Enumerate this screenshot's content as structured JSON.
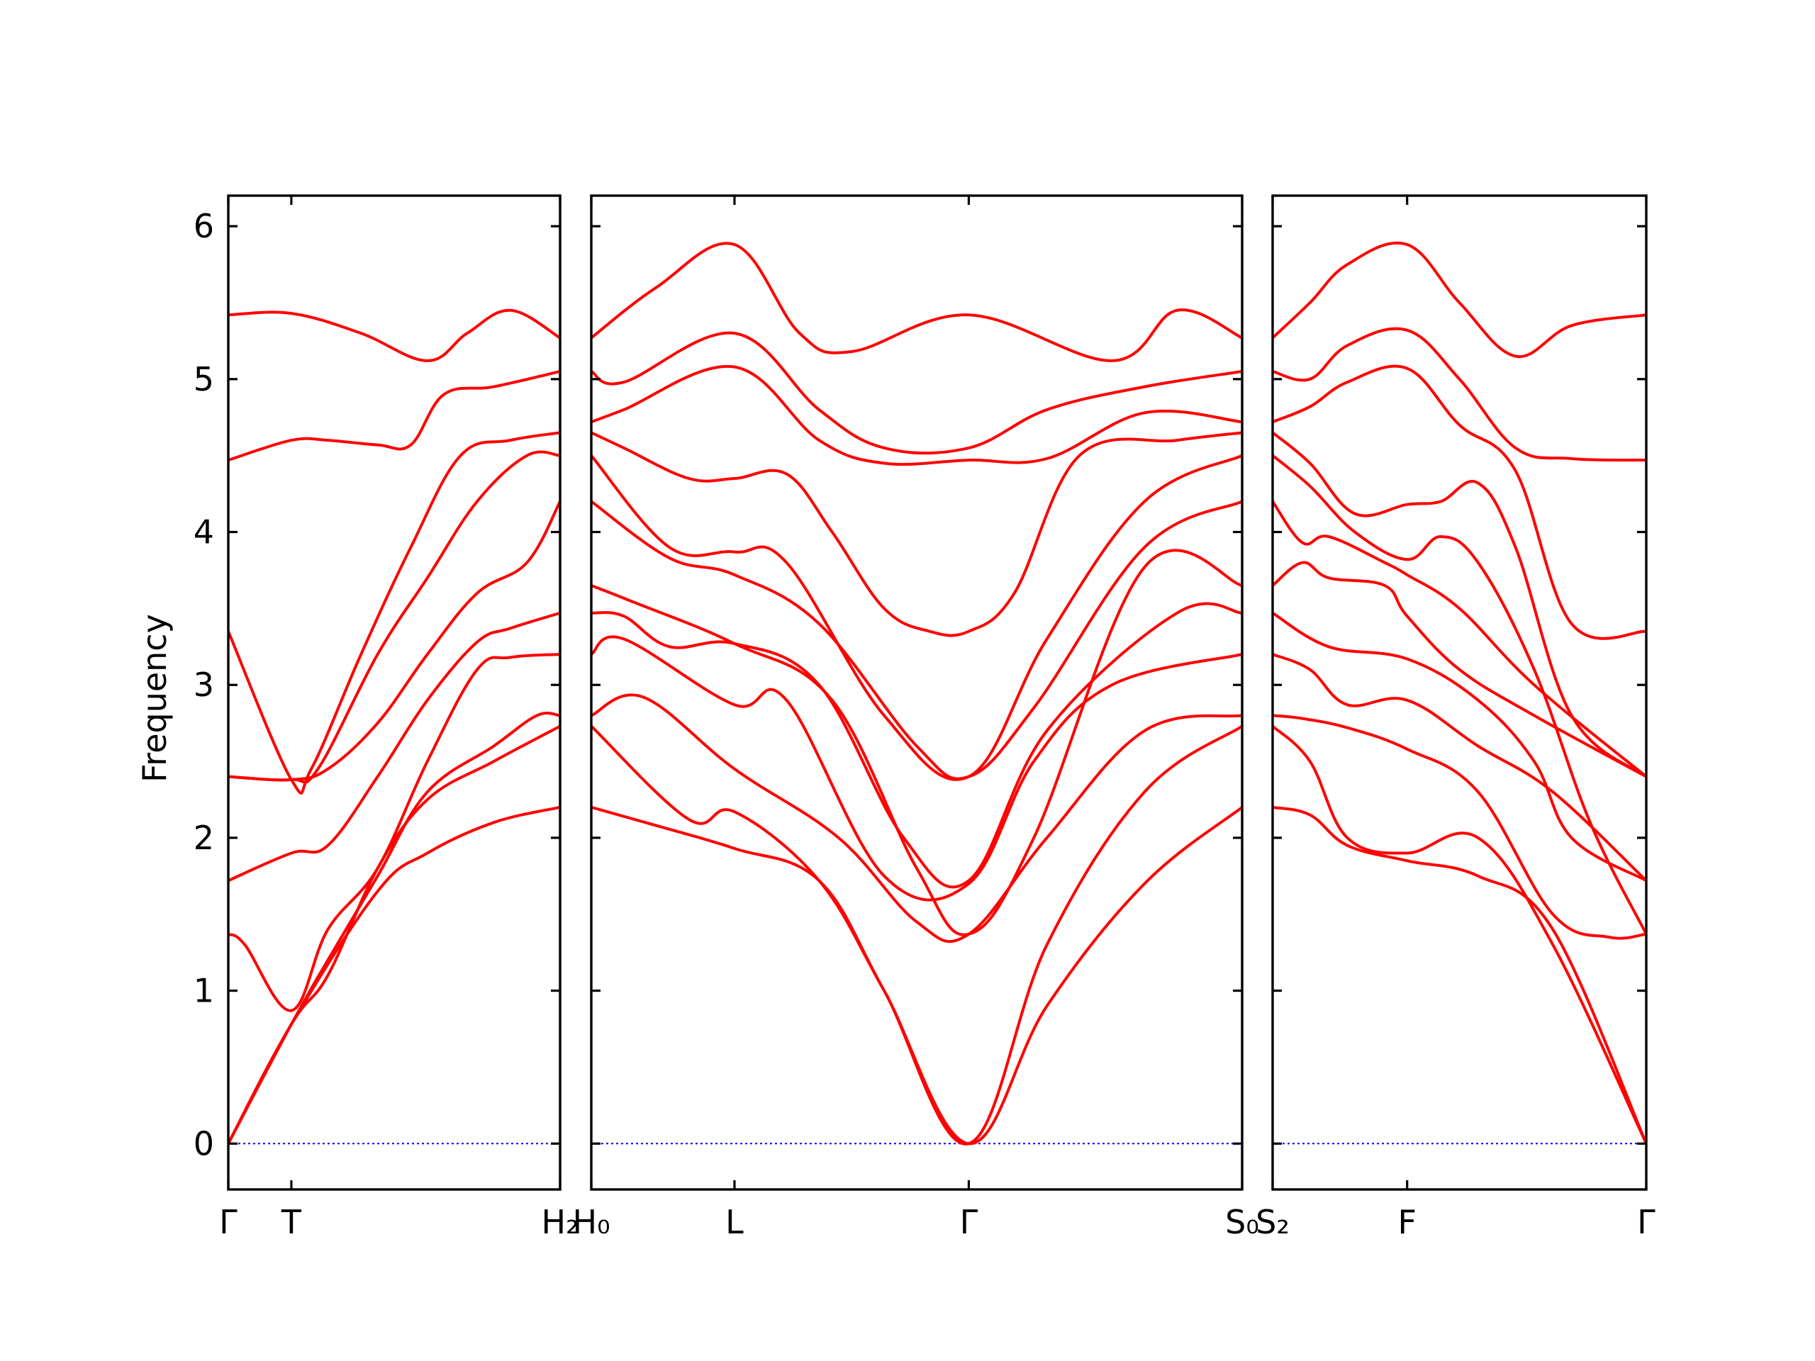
{
  "chart_data": {
    "type": "line",
    "title": "",
    "ylabel": "Frequency",
    "ylim": [
      -0.3,
      6.2
    ],
    "yticks": [
      0,
      1,
      2,
      3,
      4,
      5,
      6
    ],
    "colors": {
      "bands": "#ff0000",
      "zero_line": "#0000ff"
    },
    "panels": [
      {
        "path": "Γ-T-H2",
        "xlim": [
          0,
          1
        ],
        "ticks": [
          {
            "x": 0,
            "label": "Γ"
          },
          {
            "x": 0.19,
            "label": "T"
          },
          {
            "x": 1,
            "label": "H₂"
          }
        ],
        "series": [
          {
            "x": [
              0,
              0.19,
              0.45,
              0.6,
              0.8,
              1
            ],
            "y": [
              0,
              0.78,
              1.65,
              1.9,
              2.1,
              2.2
            ]
          },
          {
            "x": [
              0,
              0.19,
              0.3,
              0.45,
              0.6,
              0.8,
              1
            ],
            "y": [
              0,
              0.78,
              1.1,
              1.8,
              2.25,
              2.5,
              2.73
            ]
          },
          {
            "x": [
              0,
              0.19,
              0.3,
              0.45,
              0.6,
              0.8,
              0.93,
              1
            ],
            "y": [
              0,
              0.78,
              1.2,
              1.75,
              2.3,
              2.6,
              2.8,
              2.8
            ]
          },
          {
            "x": [
              0,
              0.05,
              0.19,
              0.3,
              0.45,
              0.6,
              0.75,
              0.85,
              1
            ],
            "y": [
              1.37,
              1.3,
              0.87,
              1.4,
              1.8,
              2.5,
              3.1,
              3.18,
              3.2
            ]
          },
          {
            "x": [
              0,
              0.19,
              0.3,
              0.45,
              0.6,
              0.75,
              0.85,
              1
            ],
            "y": [
              1.72,
              1.9,
              1.95,
              2.4,
              2.9,
              3.28,
              3.37,
              3.47
            ]
          },
          {
            "x": [
              0,
              0.19,
              0.3,
              0.45,
              0.6,
              0.75,
              0.9,
              1
            ],
            "y": [
              2.4,
              2.38,
              2.45,
              2.75,
              3.2,
              3.6,
              3.8,
              4.2
            ]
          },
          {
            "x": [
              0,
              0.19,
              0.27,
              0.45,
              0.6,
              0.75,
              0.9,
              1
            ],
            "y": [
              2.4,
              2.38,
              2.45,
              3.2,
              3.7,
              4.2,
              4.5,
              4.5
            ]
          },
          {
            "x": [
              0,
              0.19,
              0.25,
              0.4,
              0.55,
              0.7,
              0.85,
              1
            ],
            "y": [
              3.35,
              2.38,
              2.45,
              3.2,
              3.9,
              4.5,
              4.6,
              4.65
            ]
          },
          {
            "x": [
              0,
              0.19,
              0.3,
              0.45,
              0.55,
              0.65,
              0.8,
              1
            ],
            "y": [
              4.47,
              4.6,
              4.6,
              4.57,
              4.57,
              4.9,
              4.95,
              5.05
            ]
          },
          {
            "x": [
              0,
              0.19,
              0.4,
              0.6,
              0.72,
              0.85,
              1
            ],
            "y": [
              5.42,
              5.43,
              5.3,
              5.12,
              5.3,
              5.45,
              5.27
            ]
          }
        ]
      },
      {
        "path": "H0-L-Γ-S0",
        "xlim": [
          0,
          1
        ],
        "ticks": [
          {
            "x": 0,
            "label": "H₀"
          },
          {
            "x": 0.22,
            "label": "L"
          },
          {
            "x": 0.58,
            "label": "Γ"
          },
          {
            "x": 1,
            "label": "S₀"
          }
        ],
        "series": [
          {
            "x": [
              0,
              0.1,
              0.22,
              0.35,
              0.45,
              0.58,
              0.7,
              0.85,
              1
            ],
            "y": [
              2.2,
              2.08,
              1.93,
              1.72,
              1.0,
              0,
              0.9,
              1.7,
              2.2
            ]
          },
          {
            "x": [
              0,
              0.15,
              0.22,
              0.35,
              0.45,
              0.58,
              0.7,
              0.85,
              1
            ],
            "y": [
              2.73,
              2.12,
              2.17,
              1.72,
              1.0,
              0,
              1.3,
              2.3,
              2.73
            ]
          },
          {
            "x": [
              0,
              0.08,
              0.22,
              0.38,
              0.5,
              0.58,
              0.7,
              0.85,
              1
            ],
            "y": [
              2.8,
              2.92,
              2.45,
              2.0,
              1.45,
              1.37,
              2.0,
              2.7,
              2.8
            ]
          },
          {
            "x": [
              0,
              0.05,
              0.22,
              0.3,
              0.45,
              0.58,
              0.68,
              0.8,
              1
            ],
            "y": [
              3.2,
              3.3,
              2.87,
              2.9,
              1.75,
              1.7,
              2.5,
              3.0,
              3.2
            ]
          },
          {
            "x": [
              0,
              0.05,
              0.12,
              0.22,
              0.35,
              0.48,
              0.58,
              0.7,
              0.9,
              1
            ],
            "y": [
              3.47,
              3.45,
              3.25,
              3.27,
              3.0,
              2.0,
              1.72,
              2.7,
              3.47,
              3.47
            ]
          },
          {
            "x": [
              0,
              0.06,
              0.22,
              0.37,
              0.5,
              0.58,
              0.68,
              0.85,
              1
            ],
            "y": [
              3.65,
              3.55,
              3.27,
              2.9,
              1.8,
              1.37,
              2.0,
              3.77,
              3.65
            ]
          },
          {
            "x": [
              0,
              0.12,
              0.22,
              0.35,
              0.5,
              0.58,
              0.68,
              0.85,
              1
            ],
            "y": [
              4.2,
              3.83,
              3.72,
              3.4,
              2.6,
              2.4,
              2.85,
              3.9,
              4.2
            ]
          },
          {
            "x": [
              0,
              0.12,
              0.22,
              0.3,
              0.45,
              0.58,
              0.7,
              0.85,
              1
            ],
            "y": [
              4.5,
              3.9,
              3.87,
              3.8,
              2.8,
              2.4,
              3.3,
              4.2,
              4.5
            ]
          },
          {
            "x": [
              0,
              0.05,
              0.15,
              0.22,
              0.3,
              0.37,
              0.45,
              0.52,
              0.58,
              0.65,
              0.75,
              0.9,
              1
            ],
            "y": [
              4.65,
              4.55,
              4.35,
              4.35,
              4.38,
              4.0,
              3.5,
              3.35,
              3.35,
              3.6,
              4.5,
              4.6,
              4.65
            ]
          },
          {
            "x": [
              0,
              0.05,
              0.22,
              0.35,
              0.45,
              0.58,
              0.7,
              0.85,
              1
            ],
            "y": [
              4.72,
              4.8,
              5.08,
              4.6,
              4.45,
              4.47,
              4.48,
              4.78,
              4.72
            ]
          },
          {
            "x": [
              0,
              0.05,
              0.22,
              0.35,
              0.45,
              0.58,
              0.7,
              0.85,
              1
            ],
            "y": [
              5.05,
              4.98,
              5.3,
              4.8,
              4.55,
              4.55,
              4.8,
              4.95,
              5.05
            ]
          },
          {
            "x": [
              0,
              0.1,
              0.22,
              0.32,
              0.4,
              0.58,
              0.8,
              0.9,
              1
            ],
            "y": [
              5.27,
              5.6,
              5.88,
              5.3,
              5.18,
              5.42,
              5.12,
              5.45,
              5.27
            ]
          }
        ]
      },
      {
        "path": "S2-F-Γ",
        "xlim": [
          0,
          1
        ],
        "ticks": [
          {
            "x": 0,
            "label": "S₂"
          },
          {
            "x": 0.36,
            "label": "F"
          },
          {
            "x": 1,
            "label": "Γ"
          }
        ],
        "series": [
          {
            "x": [
              0,
              0.1,
              0.2,
              0.36,
              0.55,
              0.75,
              1
            ],
            "y": [
              2.2,
              2.15,
              1.95,
              1.85,
              1.75,
              1.4,
              0
            ]
          },
          {
            "x": [
              0,
              0.1,
              0.2,
              0.36,
              0.55,
              0.75,
              1
            ],
            "y": [
              2.73,
              2.5,
              2.0,
              1.9,
              2.0,
              1.3,
              0
            ]
          },
          {
            "x": [
              0,
              0.08,
              0.2,
              0.36,
              0.55,
              0.75,
              0.9,
              1
            ],
            "y": [
              2.8,
              2.78,
              2.72,
              2.58,
              2.3,
              1.5,
              1.35,
              1.37
            ]
          },
          {
            "x": [
              0,
              0.1,
              0.2,
              0.36,
              0.55,
              0.75,
              1
            ],
            "y": [
              3.2,
              3.1,
              2.87,
              2.9,
              2.6,
              2.3,
              1.72
            ]
          },
          {
            "x": [
              0,
              0.15,
              0.36,
              0.55,
              0.7,
              0.8,
              1
            ],
            "y": [
              3.47,
              3.25,
              3.17,
              2.9,
              2.5,
              2.0,
              1.72
            ]
          },
          {
            "x": [
              0,
              0.08,
              0.15,
              0.3,
              0.36,
              0.5,
              0.7,
              1
            ],
            "y": [
              3.65,
              3.8,
              3.7,
              3.65,
              3.45,
              3.1,
              2.8,
              2.4
            ]
          },
          {
            "x": [
              0,
              0.08,
              0.15,
              0.3,
              0.36,
              0.5,
              0.7,
              1
            ],
            "y": [
              4.2,
              3.93,
              3.97,
              3.8,
              3.72,
              3.5,
              3.0,
              2.4
            ]
          },
          {
            "x": [
              0,
              0.1,
              0.22,
              0.36,
              0.45,
              0.55,
              0.7,
              0.85,
              1
            ],
            "y": [
              4.5,
              4.3,
              4.0,
              3.82,
              3.97,
              3.8,
              3.1,
              2.1,
              1.37
            ]
          },
          {
            "x": [
              0,
              0.1,
              0.22,
              0.36,
              0.45,
              0.55,
              0.65,
              0.8,
              1
            ],
            "y": [
              4.65,
              4.45,
              4.12,
              4.18,
              4.2,
              4.32,
              3.9,
              2.8,
              2.4
            ]
          },
          {
            "x": [
              0,
              0.1,
              0.2,
              0.36,
              0.5,
              0.65,
              0.8,
              1
            ],
            "y": [
              4.72,
              4.82,
              4.98,
              5.07,
              4.7,
              4.4,
              3.4,
              3.35
            ]
          },
          {
            "x": [
              0,
              0.1,
              0.2,
              0.36,
              0.5,
              0.65,
              0.8,
              1
            ],
            "y": [
              5.05,
              5.0,
              5.22,
              5.32,
              5.0,
              4.55,
              4.48,
              4.47
            ]
          },
          {
            "x": [
              0,
              0.1,
              0.2,
              0.36,
              0.5,
              0.65,
              0.8,
              1
            ],
            "y": [
              5.27,
              5.5,
              5.75,
              5.88,
              5.5,
              5.15,
              5.35,
              5.42
            ]
          }
        ]
      }
    ]
  }
}
